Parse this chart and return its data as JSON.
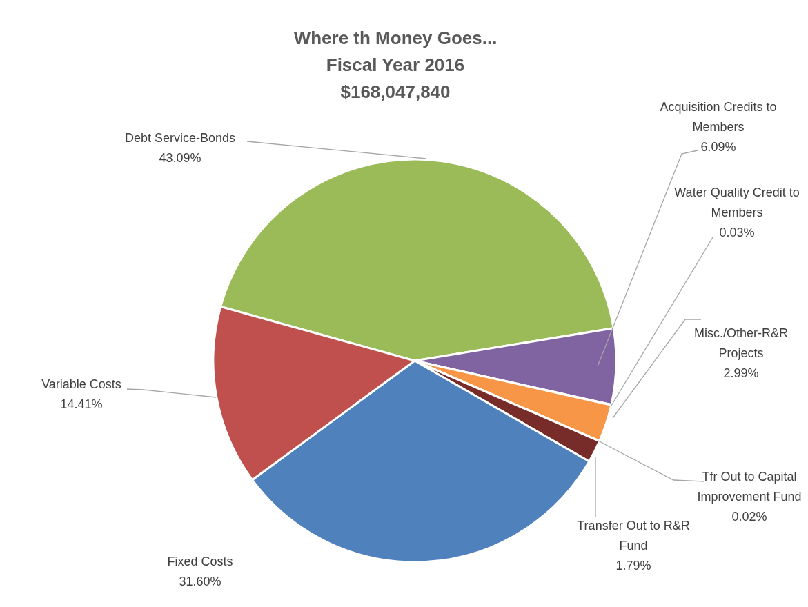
{
  "chart_data": {
    "type": "pie",
    "title": "Where th Money Goes...\nFiscal Year 2016\n$168,047,840",
    "categories": [
      "Debt Service-Bonds",
      "Acquisition Credits to Members",
      "Water Quality Credit to Members",
      "Misc./Other-R&R Projects",
      "Tfr Out to Capital Improvement Fund",
      "Transfer Out to R&R Fund",
      "Fixed Costs",
      "Variable Costs"
    ],
    "values": [
      43.09,
      6.09,
      0.03,
      2.99,
      0.02,
      1.79,
      31.6,
      14.41
    ],
    "value_labels": [
      "43.09%",
      "6.09%",
      "0.03%",
      "2.99%",
      "0.02%",
      "1.79%",
      "31.60%",
      "14.41%"
    ],
    "colors": [
      "#9bbb59",
      "#8064a2",
      "#4bacc6",
      "#f79646",
      "#2c4d75",
      "#772c2a",
      "#4f81bd",
      "#c0504d"
    ]
  }
}
